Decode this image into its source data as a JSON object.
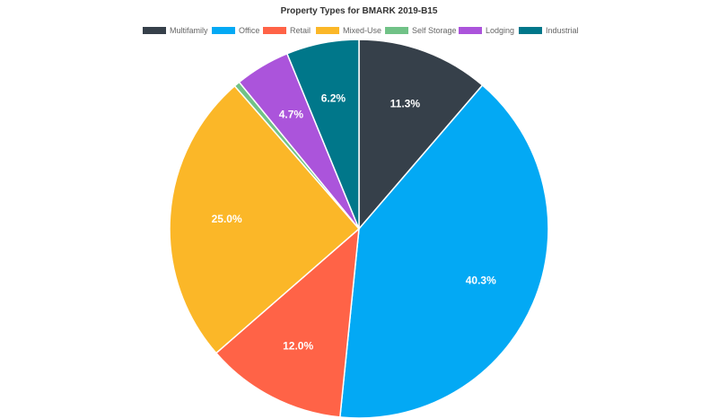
{
  "chart_data": {
    "type": "pie",
    "title": "Property Types for BMARK 2019-B15",
    "legend_position": "top",
    "slices": [
      {
        "name": "Multifamily",
        "value": 11.3,
        "label": "11.3%",
        "color": "#36404a"
      },
      {
        "name": "Office",
        "value": 40.3,
        "label": "40.3%",
        "color": "#03a9f4"
      },
      {
        "name": "Retail",
        "value": 12.0,
        "label": "12.0%",
        "color": "#ff6347"
      },
      {
        "name": "Mixed-Use",
        "value": 25.0,
        "label": "25.0%",
        "color": "#fbb728"
      },
      {
        "name": "Self Storage",
        "value": 0.5,
        "label": "",
        "color": "#71c287"
      },
      {
        "name": "Lodging",
        "value": 4.7,
        "label": "4.7%",
        "color": "#ab54db"
      },
      {
        "name": "Industrial",
        "value": 6.2,
        "label": "6.2%",
        "color": "#00778a"
      }
    ]
  }
}
